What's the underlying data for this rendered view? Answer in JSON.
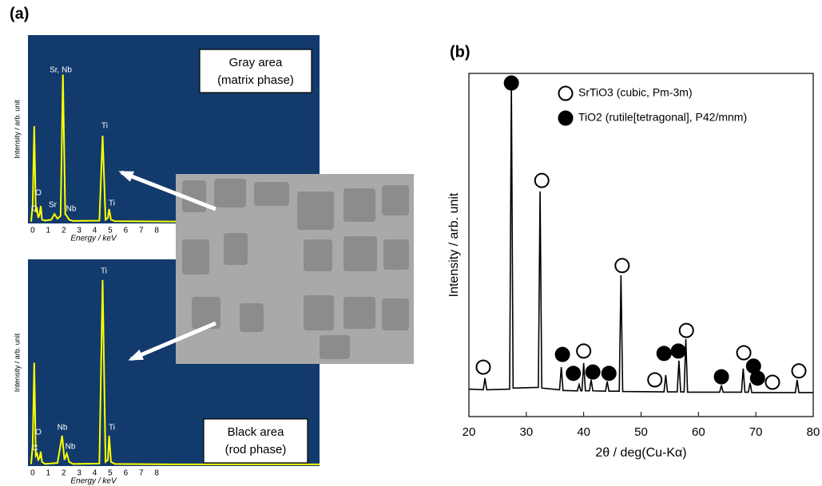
{
  "panel_a_label": "(a)",
  "panel_b_label": "(b)",
  "chart_data": [
    {
      "type": "line",
      "x_label": "Energy / keV",
      "y_label": "Intensity / arb. unit",
      "background": "#123a6c",
      "xlim": [
        -0.15,
        18.5
      ],
      "xticks": [
        0,
        1,
        2,
        3,
        4,
        5,
        6,
        7,
        8
      ],
      "ylim": [
        0,
        100
      ],
      "series": [
        {
          "color": "#ffff00",
          "x": [
            -0.1,
            0.0,
            0.1,
            0.2,
            0.28,
            0.36,
            0.45,
            0.52,
            0.6,
            0.8,
            1.2,
            1.4,
            1.6,
            1.8,
            1.95,
            2.1,
            2.2,
            2.35,
            2.6,
            4.3,
            4.51,
            4.7,
            4.85,
            4.93,
            5.05,
            5.3,
            9,
            18.5
          ],
          "values": [
            1,
            10,
            51.7,
            6,
            7.6,
            3,
            5,
            9.3,
            2,
            1.5,
            2,
            5,
            2.5,
            4,
            79,
            5,
            4,
            2,
            1.3,
            1.5,
            46.6,
            2,
            3,
            7.6,
            2,
            1.2,
            1,
            1
          ]
        }
      ],
      "annotations": [
        "Sr, Nb",
        "O",
        "C",
        "Sr",
        "Nb",
        "Ti",
        "Ti"
      ],
      "box_text": [
        "Gray area",
        "(matrix phase)"
      ]
    },
    {
      "type": "line",
      "x_label": "Energy / keV",
      "y_label": "Intensity / arb. unit",
      "background": "#123a6c",
      "xlim": [
        -0.15,
        18.5
      ],
      "xticks": [
        0,
        1,
        2,
        3,
        4,
        5,
        6,
        7,
        8
      ],
      "ylim": [
        0,
        100
      ],
      "series": [
        {
          "color": "#ffff00",
          "x": [
            -0.1,
            0.0,
            0.1,
            0.2,
            0.28,
            0.36,
            0.45,
            0.52,
            0.6,
            0.8,
            1.6,
            1.9,
            2.05,
            2.2,
            2.35,
            2.6,
            4.3,
            4.51,
            4.7,
            4.85,
            4.93,
            5.05,
            5.3,
            9,
            18.5
          ],
          "values": [
            1,
            10,
            50,
            5,
            6,
            3,
            4,
            7,
            2,
            1,
            1.5,
            14.7,
            3,
            6,
            2,
            1,
            1.2,
            90,
            2,
            3,
            14.7,
            2,
            1,
            0.8,
            0.8
          ]
        }
      ],
      "annotations": [
        "Ti",
        "O",
        "C",
        "Nb",
        "Nb",
        "Ti"
      ],
      "box_text": [
        "Black area",
        "(rod phase)"
      ]
    },
    {
      "type": "line",
      "x_label": "2θ / deg(Cu-Kα)",
      "y_label": "Intensity / arb. unit",
      "xlim": [
        20,
        80
      ],
      "xticks": [
        20,
        30,
        40,
        50,
        60,
        70,
        80
      ],
      "ylim": [
        0,
        100
      ],
      "series": [
        {
          "color": "#000000",
          "x": [
            20,
            22.5,
            22.8,
            23.1,
            27.1,
            27.4,
            27.7,
            32.1,
            32.4,
            32.7,
            35.8,
            36.1,
            36.4,
            38.9,
            39.2,
            39.5,
            39.7,
            40.0,
            40.3,
            41.0,
            41.3,
            41.6,
            43.8,
            44.1,
            44.4,
            46.2,
            46.5,
            46.8,
            54.0,
            54.3,
            54.6,
            56.3,
            56.6,
            56.9,
            57.5,
            57.8,
            58.1,
            63.7,
            64.0,
            64.3,
            67.5,
            67.8,
            68.1,
            68.7,
            69.0,
            69.3,
            76.9,
            77.2,
            77.5,
            80
          ],
          "values": [
            8,
            7.8,
            11.2,
            7.8,
            8,
            97,
            8.3,
            8.5,
            65.6,
            8.3,
            7.8,
            14.4,
            7.6,
            7.5,
            9.3,
            7.5,
            7.5,
            15.6,
            7.5,
            7.5,
            10.7,
            7.5,
            7.4,
            10.2,
            7.4,
            7.4,
            41.2,
            7.3,
            7.2,
            12.1,
            7.2,
            7.2,
            16.3,
            7.2,
            7.2,
            22.6,
            7.1,
            7.1,
            9.1,
            7.1,
            7.1,
            14,
            7.1,
            7.1,
            9.8,
            7,
            7,
            10.7,
            7,
            7
          ]
        },
        {
          "name": "SrTiO3 (cubic, Pm-3m)",
          "marker": "open",
          "color": "#000000",
          "x": [
            22.5,
            32.7,
            40.0,
            46.7,
            52.4,
            57.9,
            67.9,
            72.9,
            77.5
          ],
          "values": [
            14.4,
            68.8,
            19.1,
            44,
            10.7,
            25.1,
            18.6,
            10,
            13.3
          ]
        },
        {
          "name": "TiO2 (rutile[tetragonal], P42/mnm)",
          "marker": "filled",
          "color": "#000000",
          "x": [
            27.4,
            36.3,
            38.2,
            41.6,
            44.4,
            54.0,
            56.5,
            64.0,
            69.6,
            70.3
          ],
          "values": [
            97.2,
            18.1,
            12.6,
            13,
            12.6,
            18.4,
            19.1,
            11.6,
            14.7,
            11.2
          ]
        }
      ]
    }
  ]
}
